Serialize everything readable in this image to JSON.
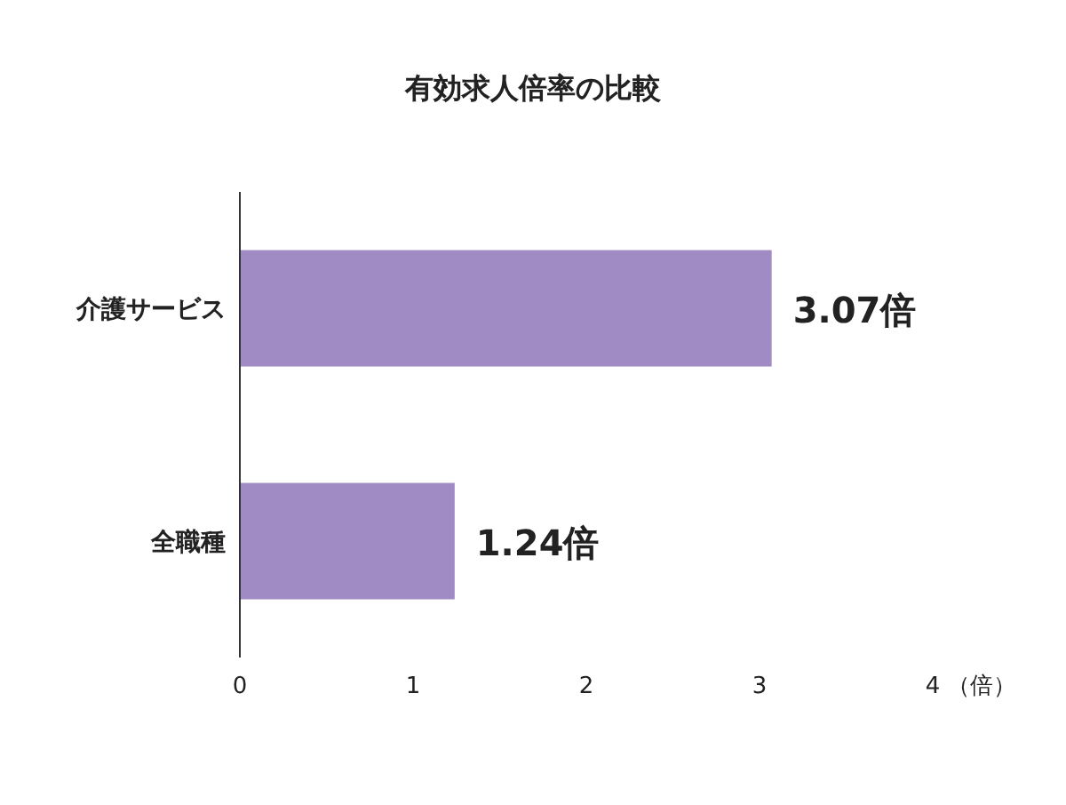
{
  "chart_data": {
    "type": "bar",
    "orientation": "horizontal",
    "title": "有効求人倍率の比較",
    "categories": [
      "介護サービス",
      "全職種"
    ],
    "values": [
      3.07,
      1.24
    ],
    "value_labels": [
      "3.07倍",
      "1.24倍"
    ],
    "color": "#a08bc4",
    "xlim": [
      0,
      4
    ],
    "xticks": [
      0,
      1,
      2,
      3,
      4
    ],
    "xlabel": "（倍）",
    "grid": false
  }
}
